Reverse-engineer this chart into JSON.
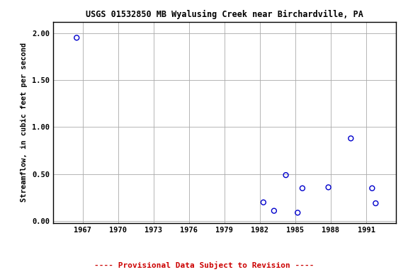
{
  "title": "USGS 01532850 MB Wyalusing Creek near Birchardville, PA",
  "xlabel": "",
  "ylabel": "Streamflow, in cubic feet per second",
  "x_data": [
    1966.5,
    1982.3,
    1983.2,
    1984.2,
    1985.2,
    1985.6,
    1987.8,
    1989.7,
    1991.5,
    1991.8
  ],
  "y_data": [
    1.95,
    0.2,
    0.11,
    0.49,
    0.09,
    0.35,
    0.36,
    0.88,
    0.35,
    0.19
  ],
  "xlim": [
    1964.5,
    1993.5
  ],
  "ylim": [
    -0.02,
    2.12
  ],
  "xticks": [
    1967,
    1970,
    1973,
    1976,
    1979,
    1982,
    1985,
    1988,
    1991
  ],
  "yticks": [
    0.0,
    0.5,
    1.0,
    1.5,
    2.0
  ],
  "marker_color": "#0000cc",
  "marker_size": 5,
  "marker_facecolor": "none",
  "grid_color": "#aaaaaa",
  "background_color": "#ffffff",
  "footnote": "---- Provisional Data Subject to Revision ----",
  "footnote_color": "#cc0000",
  "title_fontsize": 8.5,
  "label_fontsize": 7.5,
  "tick_fontsize": 7.5,
  "footnote_fontsize": 8.0
}
